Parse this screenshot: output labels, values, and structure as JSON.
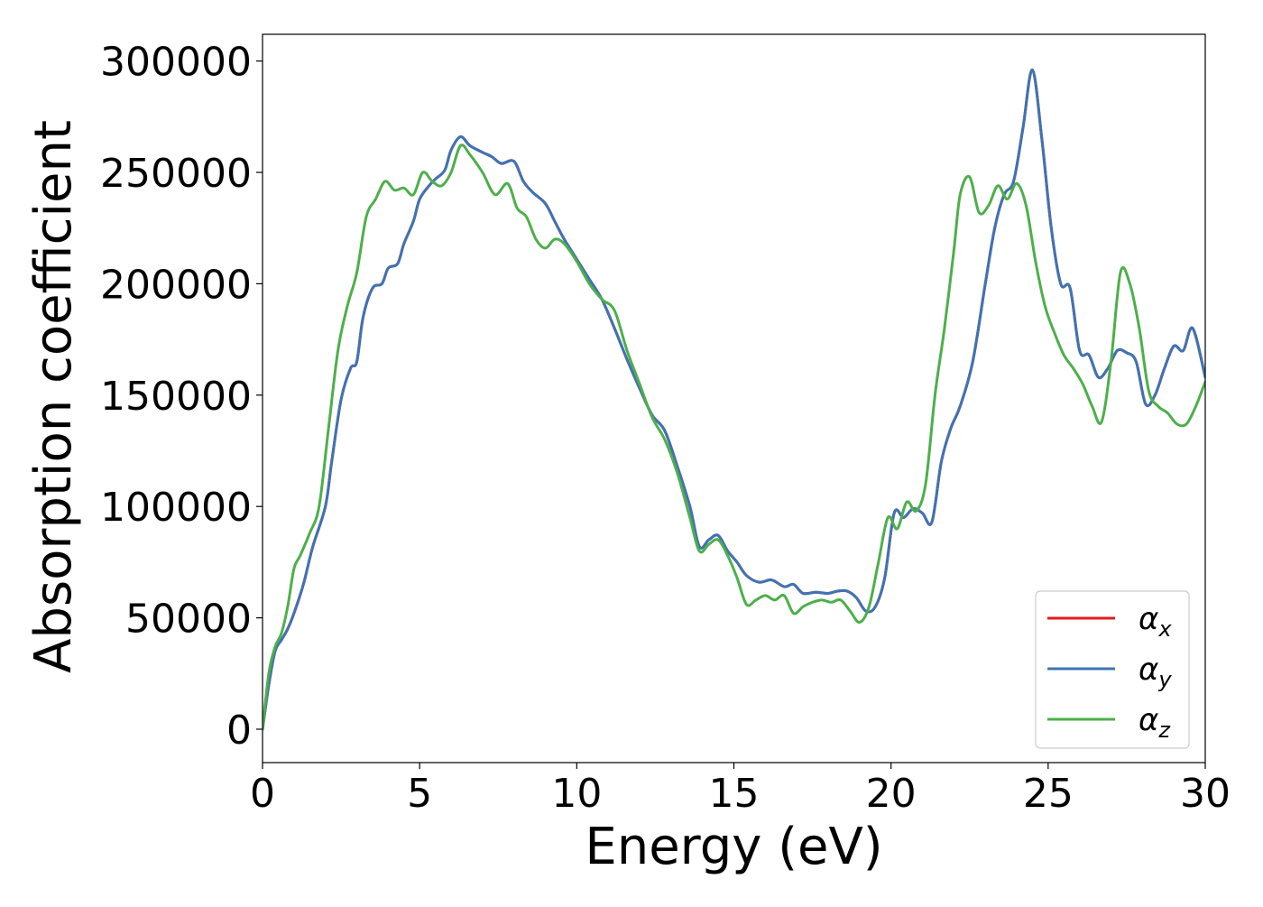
{
  "chart_data": {
    "type": "line",
    "title": "",
    "xlabel": "Energy (eV)",
    "ylabel": "Absorption coefficient",
    "xlim": [
      0,
      30
    ],
    "ylim": [
      -15000,
      312000
    ],
    "xticks": [
      0,
      5,
      10,
      15,
      20,
      25,
      30
    ],
    "yticks": [
      0,
      50000,
      100000,
      150000,
      200000,
      250000,
      300000
    ],
    "xtick_labels": [
      "0",
      "5",
      "10",
      "15",
      "20",
      "25",
      "30"
    ],
    "ytick_labels": [
      "0",
      "50000",
      "100000",
      "150000",
      "200000",
      "250000",
      "300000"
    ],
    "grid": false,
    "legend_position": "lower-right",
    "series": [
      {
        "name": "αx",
        "legend_symbol": "α",
        "legend_subscript": "x",
        "color": "#e41a1c",
        "x": [
          0,
          0.2,
          0.4,
          0.6,
          0.8,
          1.0,
          1.3,
          1.6,
          2.0,
          2.2,
          2.5,
          2.8,
          3.0,
          3.2,
          3.5,
          3.8,
          4.0,
          4.3,
          4.5,
          4.8,
          5.0,
          5.3,
          5.5,
          5.8,
          6.0,
          6.3,
          6.6,
          7.0,
          7.3,
          7.6,
          8.0,
          8.3,
          8.6,
          9.0,
          9.3,
          9.6,
          10.0,
          10.4,
          10.8,
          11.2,
          11.6,
          12.0,
          12.4,
          12.8,
          13.2,
          13.6,
          13.9,
          14.2,
          14.5,
          14.8,
          15.1,
          15.4,
          15.8,
          16.2,
          16.6,
          16.9,
          17.2,
          17.6,
          18.0,
          18.3,
          18.6,
          18.9,
          19.2,
          19.5,
          19.8,
          20.1,
          20.4,
          20.7,
          21.0,
          21.3,
          21.6,
          21.9,
          22.2,
          22.6,
          23.0,
          23.3,
          23.6,
          23.9,
          24.2,
          24.5,
          24.8,
          25.1,
          25.4,
          25.7,
          26.0,
          26.3,
          26.6,
          26.9,
          27.2,
          27.5,
          27.8,
          28.1,
          28.4,
          28.7,
          29.0,
          29.3,
          29.6,
          30.0
        ],
        "y": [
          0,
          20000,
          35000,
          40000,
          45000,
          52000,
          65000,
          82000,
          100000,
          120000,
          148000,
          162000,
          165000,
          185000,
          198000,
          200000,
          207000,
          209000,
          218000,
          228000,
          238000,
          244000,
          247000,
          251000,
          260000,
          266000,
          262000,
          259000,
          257000,
          254000,
          255000,
          246000,
          241000,
          236000,
          228000,
          220000,
          211000,
          202000,
          193000,
          180000,
          166000,
          153000,
          141000,
          134000,
          118000,
          100000,
          82000,
          85000,
          87000,
          80000,
          75000,
          69000,
          66000,
          67000,
          64000,
          65000,
          61000,
          61500,
          61000,
          62000,
          62000,
          59000,
          53000,
          55000,
          68000,
          97000,
          95000,
          99000,
          97000,
          93000,
          120000,
          135000,
          145000,
          165000,
          200000,
          225000,
          240000,
          246000,
          270000,
          296000,
          265000,
          225000,
          200000,
          198000,
          170000,
          168000,
          158000,
          162000,
          170000,
          169000,
          165000,
          146000,
          150000,
          162000,
          172000,
          170000,
          180000,
          158000
        ]
      },
      {
        "name": "αy",
        "legend_symbol": "α",
        "legend_subscript": "y",
        "color": "#3d74b4",
        "x": [
          0,
          0.2,
          0.4,
          0.6,
          0.8,
          1.0,
          1.3,
          1.6,
          2.0,
          2.2,
          2.5,
          2.8,
          3.0,
          3.2,
          3.5,
          3.8,
          4.0,
          4.3,
          4.5,
          4.8,
          5.0,
          5.3,
          5.5,
          5.8,
          6.0,
          6.3,
          6.6,
          7.0,
          7.3,
          7.6,
          8.0,
          8.3,
          8.6,
          9.0,
          9.3,
          9.6,
          10.0,
          10.4,
          10.8,
          11.2,
          11.6,
          12.0,
          12.4,
          12.8,
          13.2,
          13.6,
          13.9,
          14.2,
          14.5,
          14.8,
          15.1,
          15.4,
          15.8,
          16.2,
          16.6,
          16.9,
          17.2,
          17.6,
          18.0,
          18.3,
          18.6,
          18.9,
          19.2,
          19.5,
          19.8,
          20.1,
          20.4,
          20.7,
          21.0,
          21.3,
          21.6,
          21.9,
          22.2,
          22.6,
          23.0,
          23.3,
          23.6,
          23.9,
          24.2,
          24.5,
          24.8,
          25.1,
          25.4,
          25.7,
          26.0,
          26.3,
          26.6,
          26.9,
          27.2,
          27.5,
          27.8,
          28.1,
          28.4,
          28.7,
          29.0,
          29.3,
          29.6,
          30.0
        ],
        "y": [
          0,
          20000,
          35000,
          40000,
          45000,
          52000,
          65000,
          82000,
          100000,
          120000,
          148000,
          162000,
          165000,
          185000,
          198000,
          200000,
          207000,
          209000,
          218000,
          228000,
          238000,
          244000,
          247000,
          251000,
          260000,
          266000,
          262000,
          259000,
          257000,
          254000,
          255000,
          246000,
          241000,
          236000,
          228000,
          220000,
          211000,
          202000,
          193000,
          180000,
          166000,
          153000,
          141000,
          134000,
          118000,
          100000,
          82000,
          85000,
          87000,
          80000,
          75000,
          69000,
          66000,
          67000,
          64000,
          65000,
          61000,
          61500,
          61000,
          62000,
          62000,
          59000,
          53000,
          55000,
          68000,
          97000,
          95000,
          99000,
          97000,
          93000,
          120000,
          135000,
          145000,
          165000,
          200000,
          225000,
          240000,
          246000,
          270000,
          296000,
          265000,
          225000,
          200000,
          198000,
          170000,
          168000,
          158000,
          162000,
          170000,
          169000,
          165000,
          146000,
          150000,
          162000,
          172000,
          170000,
          180000,
          158000
        ]
      },
      {
        "name": "αz",
        "legend_symbol": "α",
        "legend_subscript": "z",
        "color": "#4daf4a",
        "x": [
          0,
          0.2,
          0.4,
          0.6,
          0.8,
          1.0,
          1.2,
          1.5,
          1.8,
          2.1,
          2.4,
          2.7,
          3.0,
          3.3,
          3.6,
          3.9,
          4.2,
          4.5,
          4.8,
          5.1,
          5.4,
          5.7,
          6.0,
          6.3,
          6.6,
          7.0,
          7.4,
          7.8,
          8.1,
          8.4,
          8.7,
          9.0,
          9.3,
          9.6,
          10.0,
          10.4,
          10.8,
          11.2,
          11.6,
          12.0,
          12.4,
          12.8,
          13.2,
          13.6,
          13.9,
          14.2,
          14.5,
          14.8,
          15.1,
          15.4,
          15.7,
          16.0,
          16.3,
          16.6,
          16.9,
          17.2,
          17.5,
          17.8,
          18.1,
          18.4,
          18.7,
          19.0,
          19.3,
          19.6,
          19.9,
          20.2,
          20.5,
          20.8,
          21.1,
          21.4,
          21.7,
          22.0,
          22.2,
          22.5,
          22.8,
          23.1,
          23.4,
          23.7,
          24.0,
          24.3,
          24.6,
          24.9,
          25.2,
          25.5,
          25.8,
          26.1,
          26.4,
          26.7,
          27.0,
          27.3,
          27.6,
          27.9,
          28.2,
          28.5,
          28.8,
          29.1,
          29.4,
          29.7,
          30.0
        ],
        "y": [
          0,
          25000,
          37000,
          43000,
          55000,
          72000,
          78000,
          88000,
          100000,
          135000,
          170000,
          190000,
          205000,
          230000,
          238000,
          246000,
          242000,
          243000,
          240000,
          250000,
          246000,
          244000,
          250000,
          262000,
          258000,
          250000,
          240000,
          245000,
          234000,
          230000,
          220000,
          216000,
          220000,
          218000,
          210000,
          200000,
          193000,
          188000,
          170000,
          155000,
          140000,
          130000,
          115000,
          95000,
          80000,
          83000,
          85000,
          78000,
          68000,
          56000,
          58000,
          60000,
          58000,
          60000,
          52000,
          55000,
          57000,
          58000,
          57000,
          58000,
          53000,
          48000,
          55000,
          75000,
          95000,
          90000,
          102000,
          98000,
          110000,
          150000,
          180000,
          215000,
          240000,
          248000,
          232000,
          235000,
          244000,
          238000,
          245000,
          235000,
          210000,
          190000,
          178000,
          168000,
          162000,
          155000,
          145000,
          138000,
          165000,
          205000,
          200000,
          180000,
          152000,
          145000,
          142000,
          137000,
          137000,
          145000,
          156000
        ]
      }
    ]
  }
}
